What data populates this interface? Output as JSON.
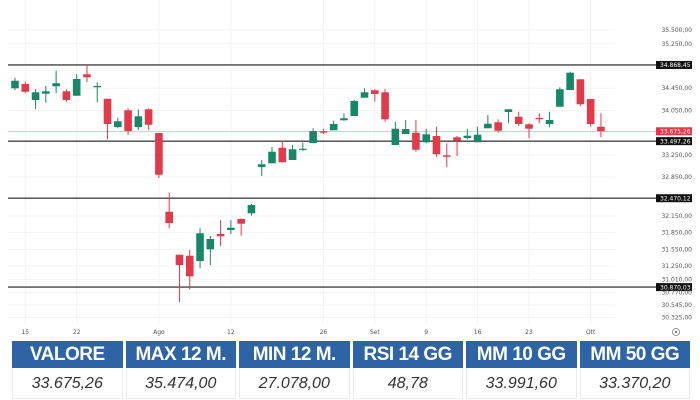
{
  "chart_data": {
    "type": "candlestick",
    "colors": {
      "up": "#17876a",
      "down": "#e23a4a",
      "level_line": "#444444",
      "current_price": "#e23a4a"
    },
    "ohlc": [
      [
        34449,
        34639,
        34418,
        34585
      ],
      [
        34526,
        34567,
        34359,
        34387
      ],
      [
        34238,
        34436,
        34076,
        34377
      ],
      [
        34351,
        34490,
        34189,
        34395
      ],
      [
        34485,
        34765,
        34359,
        34539
      ],
      [
        34395,
        34431,
        34207,
        34238
      ],
      [
        34315,
        34706,
        34315,
        34616
      ],
      [
        34701,
        34868,
        34562,
        34647
      ],
      [
        34467,
        34557,
        34197,
        34490
      ],
      [
        34261,
        34261,
        33531,
        33806
      ],
      [
        33752,
        33919,
        33729,
        33855
      ],
      [
        34053,
        34089,
        33608,
        33680
      ],
      [
        33752,
        34069,
        33698,
        33945
      ],
      [
        34071,
        34089,
        33698,
        33793
      ],
      [
        33644,
        33644,
        32834,
        32893
      ],
      [
        32227,
        32569,
        31929,
        32024
      ],
      [
        31453,
        31453,
        30602,
        31268
      ],
      [
        31435,
        31538,
        30831,
        31065
      ],
      [
        31340,
        31929,
        31209,
        31839
      ],
      [
        31551,
        31790,
        31268,
        31736
      ],
      [
        31826,
        32078,
        31610,
        31785
      ],
      [
        31898,
        32078,
        31826,
        31939
      ],
      [
        32096,
        32109,
        31795,
        32011
      ],
      [
        32199,
        32366,
        32155,
        32348
      ],
      [
        33032,
        33158,
        32870,
        33081
      ],
      [
        33099,
        33397,
        33099,
        33307
      ],
      [
        33379,
        33505,
        33117,
        33117
      ],
      [
        33158,
        33428,
        33158,
        33351
      ],
      [
        33343,
        33469,
        33320,
        33361
      ],
      [
        33464,
        33729,
        33464,
        33680
      ],
      [
        33675,
        33721,
        33626,
        33649
      ],
      [
        33693,
        33865,
        33693,
        33806
      ],
      [
        33873,
        33999,
        33865,
        33909
      ],
      [
        33950,
        34238,
        33950,
        34220
      ],
      [
        34279,
        34449,
        34279,
        34377
      ],
      [
        34413,
        34436,
        34207,
        34346
      ],
      [
        34377,
        34436,
        33847,
        33891
      ],
      [
        33428,
        33842,
        33428,
        33721
      ],
      [
        33626,
        33878,
        33626,
        33716
      ],
      [
        33649,
        33878,
        33307,
        33343
      ],
      [
        33477,
        33721,
        33459,
        33621
      ],
      [
        33590,
        33757,
        33217,
        33261
      ],
      [
        33243,
        33459,
        33027,
        33217
      ],
      [
        33567,
        33590,
        33230,
        33505
      ],
      [
        33554,
        33721,
        33531,
        33595
      ],
      [
        33477,
        33757,
        33477,
        33613
      ],
      [
        33729,
        33968,
        33729,
        33811
      ],
      [
        33837,
        33891,
        33649,
        33685
      ],
      [
        34022,
        34071,
        33819,
        34071
      ],
      [
        33937,
        34027,
        33770,
        33806
      ],
      [
        33801,
        33819,
        33549,
        33721
      ],
      [
        33914,
        33999,
        33819,
        33901
      ],
      [
        33806,
        34027,
        33747,
        33878
      ],
      [
        34117,
        34467,
        34117,
        34431
      ],
      [
        34418,
        34747,
        34418,
        34729
      ],
      [
        34611,
        34611,
        34130,
        34161
      ],
      [
        34256,
        34256,
        33757,
        33806
      ],
      [
        33757,
        33999,
        33567,
        33675
      ]
    ],
    "x_ticks": [
      {
        "label": "15",
        "index": 1
      },
      {
        "label": "22",
        "index": 6
      },
      {
        "label": "Ago",
        "index": 14
      },
      {
        "label": "12",
        "index": 21
      },
      {
        "label": "26",
        "index": 30
      },
      {
        "label": "Set",
        "index": 35
      },
      {
        "label": "9",
        "index": 40
      },
      {
        "label": "16",
        "index": 45
      },
      {
        "label": "23",
        "index": 50
      },
      {
        "label": "Ott",
        "index": 56
      }
    ],
    "y_ticks": [
      {
        "value": 35500,
        "label": "35.500,00"
      },
      {
        "value": 35250,
        "label": "35.250,00"
      },
      {
        "value": 34450,
        "label": "34.450,00"
      },
      {
        "value": 34050,
        "label": "34.050,00"
      },
      {
        "value": 33250,
        "label": "33.250,00"
      },
      {
        "value": 32850,
        "label": "32.850,00"
      },
      {
        "value": 32150,
        "label": "32.150,00"
      },
      {
        "value": 31850,
        "label": "31.850,00"
      },
      {
        "value": 31550,
        "label": "31.550,00"
      },
      {
        "value": 31250,
        "label": "31.250,00"
      },
      {
        "value": 31010,
        "label": "31.010,00"
      },
      {
        "value": 30770,
        "label": "30.770,00"
      },
      {
        "value": 30545,
        "label": "30.545,00"
      },
      {
        "value": 30325,
        "label": "30.325,00"
      }
    ],
    "levels": [
      {
        "value": 34868.45,
        "label": "34.868,45"
      },
      {
        "value": 33497.26,
        "label": "33.497,26"
      },
      {
        "value": 32470.12,
        "label": "32.470,12"
      },
      {
        "value": 30870.03,
        "label": "30.870,03"
      }
    ],
    "current_price": {
      "value": 33675.26,
      "label": "33.675,26"
    },
    "ylim": [
      30250,
      35600
    ],
    "grid": true
  },
  "stats": [
    {
      "label": "VALORE",
      "value": "33.675,26"
    },
    {
      "label": "MAX 12 M.",
      "value": "35.474,00"
    },
    {
      "label": "MIN 12 M.",
      "value": "27.078,00"
    },
    {
      "label": "RSI 14 GG",
      "value": "48,78"
    },
    {
      "label": "MM 10 GG",
      "value": "33.991,60"
    },
    {
      "label": "MM 50 GG",
      "value": "33.370,20"
    }
  ]
}
